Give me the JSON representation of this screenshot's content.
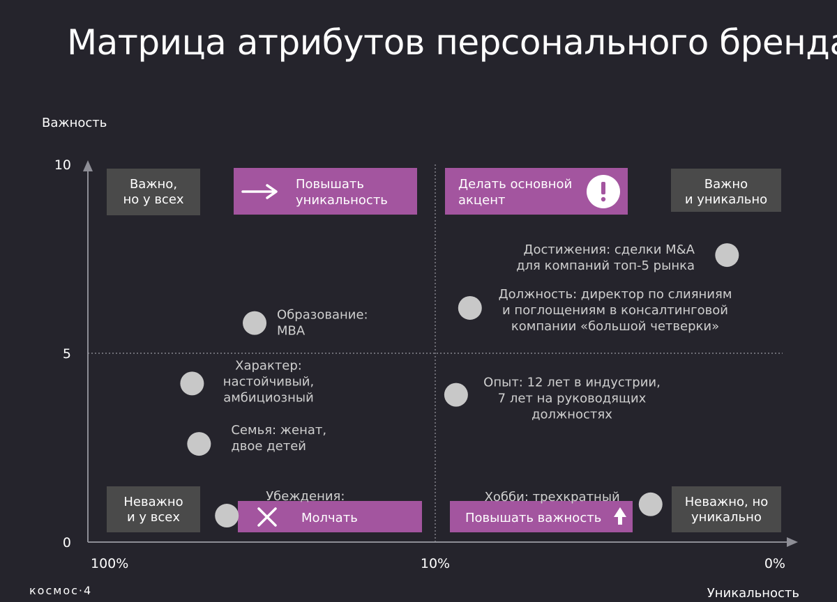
{
  "slide": {
    "title": "Матрица атрибутов персонального бренда",
    "title_mark": "©",
    "brand": "космос·4"
  },
  "colors": {
    "background": "#25242c",
    "axis": "#8e8e96",
    "point": "#c8c8c8",
    "label_text": "#cfcfcf",
    "quadrant_box": "#4a4a4a",
    "action_box": "#a3559f"
  },
  "chart_data": {
    "type": "scatter",
    "title": "",
    "ylabel": "Важность",
    "xlabel": "Уникальность",
    "ylim": [
      0,
      10
    ],
    "yticks": [
      "0",
      "5",
      "10"
    ],
    "xticks": [
      "100%",
      "10%",
      "0%"
    ],
    "x_scale": "reversed, uniqueness from 0 to 100 (axis labels show share of people having the attribute)",
    "xlim": [
      0,
      100
    ],
    "midlines": {
      "x": 50,
      "y": 5
    },
    "points": [
      {
        "label_lines": [
          "Достижения: сделки M&A",
          "для компаний топ-5 рынка"
        ],
        "x": 92,
        "y": 7.6
      },
      {
        "label_lines": [
          "Должность: директор по слияниям",
          "и поглощениям в консалтинговой",
          "компании «большой четверки»"
        ],
        "x": 55,
        "y": 6.2
      },
      {
        "label_lines": [
          "Образование:",
          "MBA"
        ],
        "x": 24,
        "y": 5.8
      },
      {
        "label_lines": [
          "Характер:",
          "настойчивый,",
          "амбициозный"
        ],
        "x": 15,
        "y": 4.2
      },
      {
        "label_lines": [
          "Опыт: 12 лет в индустрии,",
          "7 лет на руководящих",
          "должностях"
        ],
        "x": 53,
        "y": 3.9
      },
      {
        "label_lines": [
          "Семья: женат,",
          "двое детей"
        ],
        "x": 16,
        "y": 2.6
      },
      {
        "label_lines": [
          "Убеждения:"
        ],
        "x": 20,
        "y": 0.7
      },
      {
        "label_lines": [
          "Хобби: трехкратный"
        ],
        "x": 81,
        "y": 1.0
      }
    ],
    "quadrant_labels": [
      {
        "lines": [
          "Важно,",
          "но у всех"
        ],
        "position": "top-left"
      },
      {
        "lines": [
          "Важно",
          "и уникально"
        ],
        "position": "top-right"
      },
      {
        "lines": [
          "Неважно",
          "и у всех"
        ],
        "position": "bottom-left"
      },
      {
        "lines": [
          "Неважно, но",
          "уникально"
        ],
        "position": "bottom-right"
      }
    ],
    "actions": [
      {
        "lines": [
          "Повышать",
          "уникальность"
        ],
        "icon": "arrow-right-icon",
        "position": "top-left"
      },
      {
        "lines": [
          "Делать основной",
          "акцент"
        ],
        "icon": "exclamation-icon",
        "position": "top-right"
      },
      {
        "lines": [
          "Молчать"
        ],
        "icon": "cross-icon",
        "position": "bottom-left"
      },
      {
        "lines": [
          "Повышать важность"
        ],
        "icon": "arrow-up-icon",
        "position": "bottom-right"
      }
    ]
  }
}
